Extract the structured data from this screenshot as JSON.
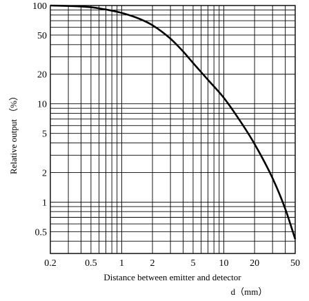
{
  "chart_data": {
    "type": "line",
    "x_scale": "log",
    "y_scale": "log",
    "xlim": [
      0.2,
      50
    ],
    "ylim": [
      0.3,
      100
    ],
    "grid": true,
    "xlabel_line1": "Distance between emitter and detector",
    "xlabel_line2": "d（mm）",
    "ylabel": "Relative output （%）",
    "x_ticks": [
      "0.2",
      "0.5",
      "1",
      "2",
      "5",
      "10",
      "20",
      "50"
    ],
    "y_ticks": [
      "100",
      "50",
      "20",
      "10",
      "5",
      "2",
      "1",
      "0.5"
    ],
    "series": [
      {
        "x": [
          0.2,
          0.3,
          0.5,
          0.7,
          1,
          1.5,
          2,
          3,
          4,
          5,
          7,
          10,
          15,
          20,
          30,
          40,
          50
        ],
        "y": [
          100,
          99,
          96,
          91,
          84,
          73,
          63,
          46,
          34,
          26,
          17.5,
          11.5,
          6.3,
          3.9,
          1.75,
          0.85,
          0.42
        ]
      }
    ]
  }
}
